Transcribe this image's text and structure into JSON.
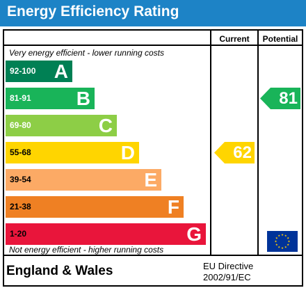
{
  "title": "Energy Efficiency Rating",
  "columns": {
    "current": "Current",
    "potential": "Potential"
  },
  "top_note": "Very energy efficient - lower running costs",
  "bottom_note": "Not energy efficient - higher running costs",
  "footer": {
    "region": "England & Wales",
    "directive_line1": "EU Directive",
    "directive_line2": "2002/91/EC",
    "flag_icon": "eu-flag-icon"
  },
  "chart_data": {
    "type": "bar",
    "title": "Energy Efficiency Rating",
    "categories": [
      "A",
      "B",
      "C",
      "D",
      "E",
      "F",
      "G"
    ],
    "bands": [
      {
        "letter": "A",
        "range": "92-100",
        "min": 92,
        "max": 100,
        "color": "#008054",
        "range_color": "#ffffff"
      },
      {
        "letter": "B",
        "range": "81-91",
        "min": 81,
        "max": 91,
        "color": "#19b459",
        "range_color": "#ffffff"
      },
      {
        "letter": "C",
        "range": "69-80",
        "min": 69,
        "max": 80,
        "color": "#8dce46",
        "range_color": "#ffffff"
      },
      {
        "letter": "D",
        "range": "55-68",
        "min": 55,
        "max": 68,
        "color": "#ffd500",
        "range_color": "#000000"
      },
      {
        "letter": "E",
        "range": "39-54",
        "min": 39,
        "max": 54,
        "color": "#fcaa65",
        "range_color": "#000000"
      },
      {
        "letter": "F",
        "range": "21-38",
        "min": 21,
        "max": 38,
        "color": "#ef8023",
        "range_color": "#000000"
      },
      {
        "letter": "G",
        "range": "1-20",
        "min": 1,
        "max": 20,
        "color": "#e9153b",
        "range_color": "#000000"
      }
    ],
    "series": [
      {
        "name": "Current",
        "value": 62,
        "band": "D",
        "color": "#ffd500"
      },
      {
        "name": "Potential",
        "value": 81,
        "band": "B",
        "color": "#19b459"
      }
    ]
  }
}
